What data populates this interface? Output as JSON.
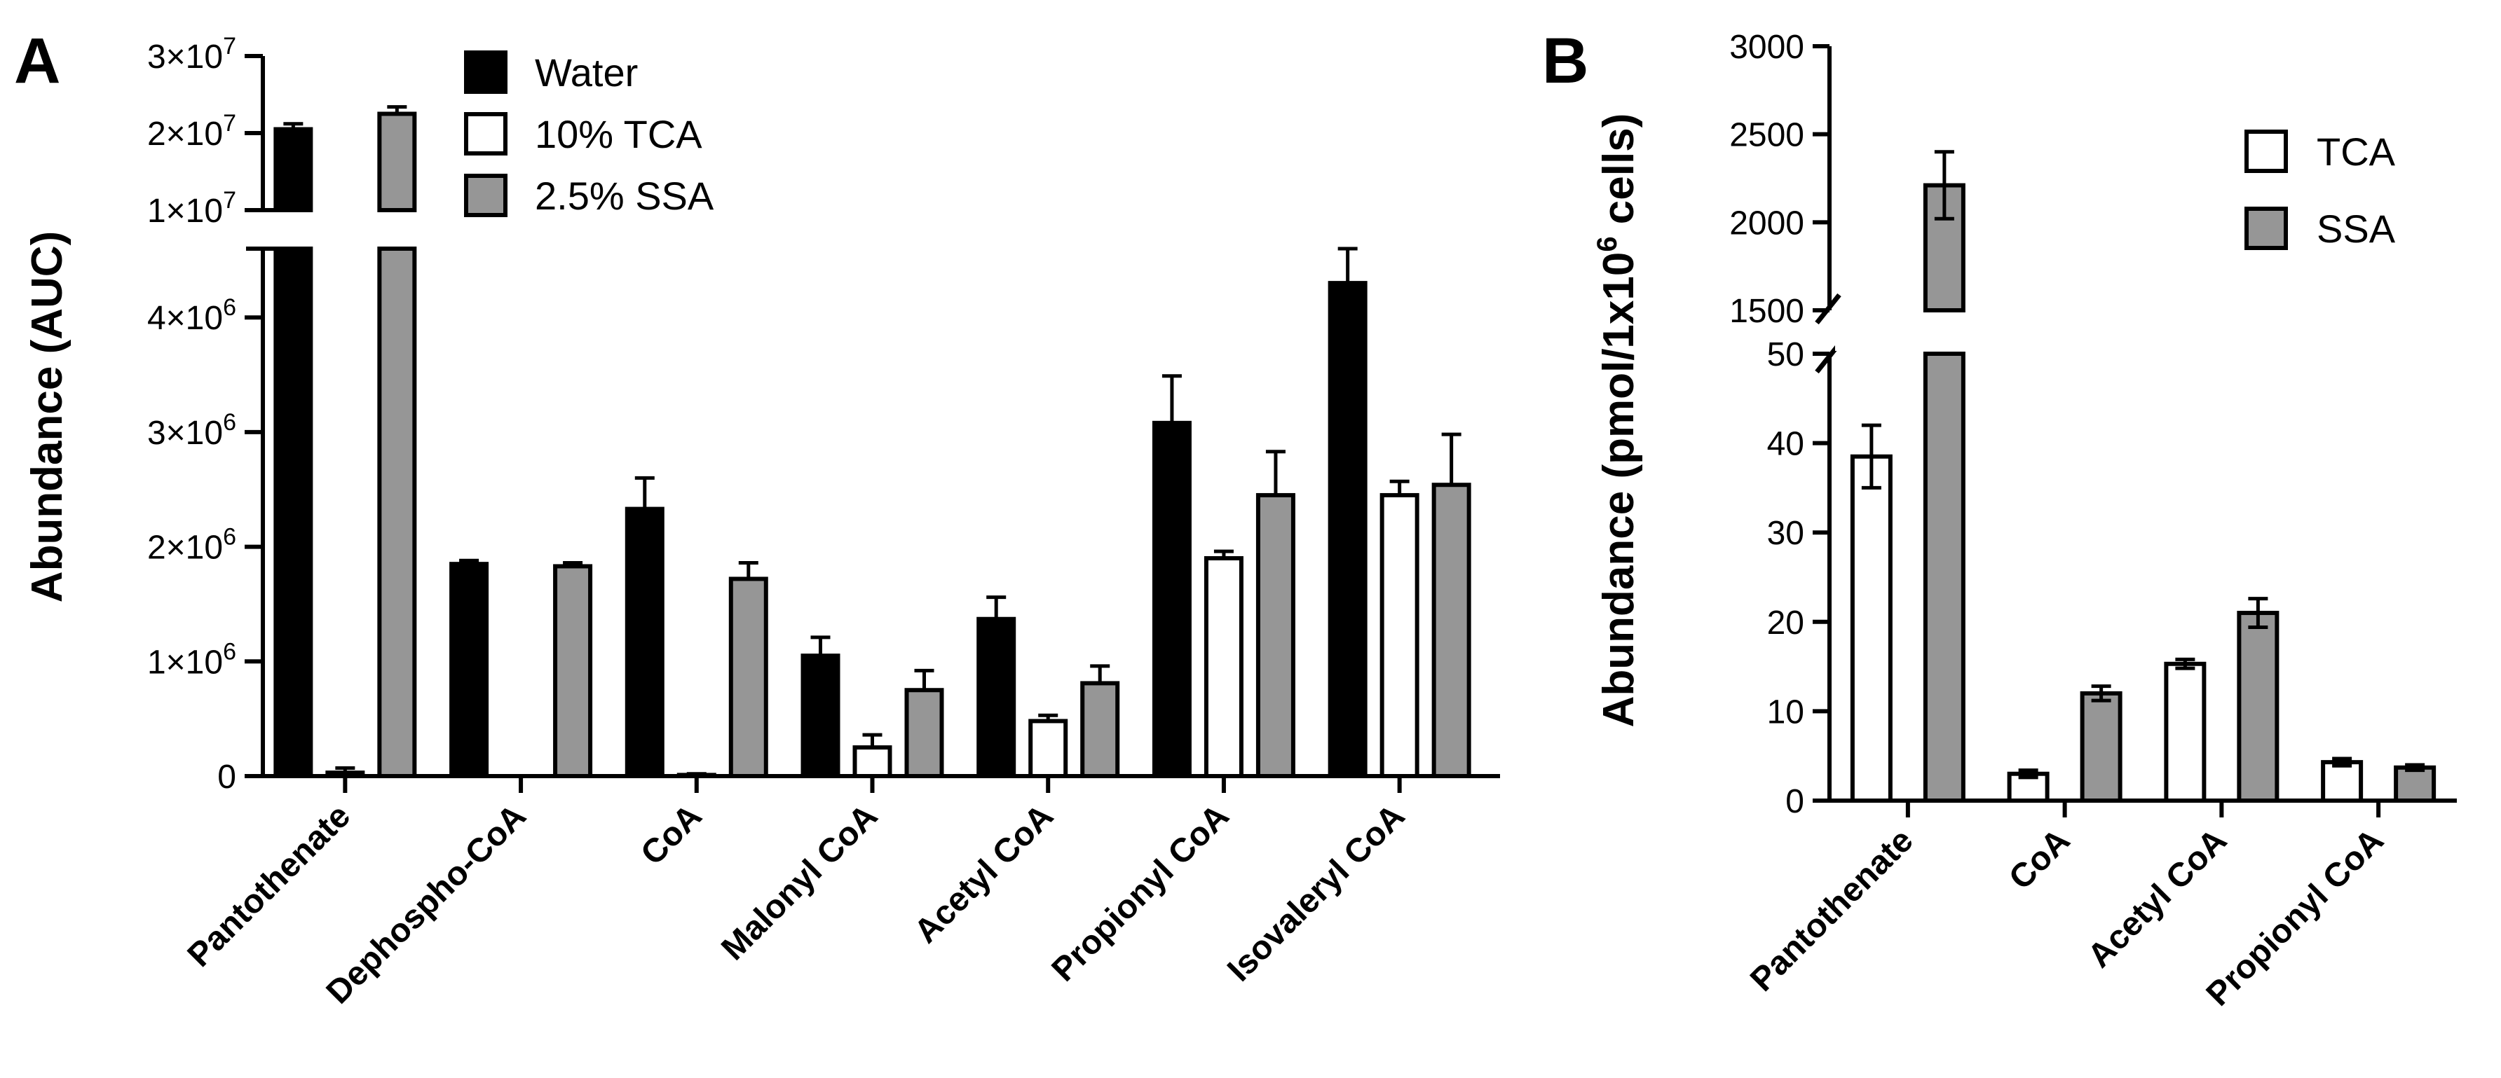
{
  "chart_data": [
    {
      "panel": "A",
      "type": "bar",
      "ylabel": "Abundance (AUC)",
      "categories": [
        "Pantothenate",
        "Dephospho-CoA",
        "CoA",
        "Malonyl CoA",
        "Acetyl CoA",
        "Propionyl CoA",
        "Isovaleryl CoA"
      ],
      "series": [
        {
          "name": "Water",
          "color": "#000000",
          "values": [
            20500000,
            1850000,
            2330000,
            1050000,
            1370000,
            3080000,
            4300000
          ],
          "errors": [
            700000,
            30000,
            270000,
            160000,
            190000,
            410000,
            300000
          ]
        },
        {
          "name": "10% TCA",
          "color": "#ffffff",
          "values": [
            30000,
            0,
            10000,
            250000,
            480000,
            1900000,
            2450000
          ],
          "errors": [
            40000,
            0,
            10000,
            110000,
            50000,
            60000,
            120000
          ]
        },
        {
          "name": "2.5% SSA",
          "color": "#969696",
          "values": [
            22500000,
            1830000,
            1720000,
            750000,
            810000,
            2450000,
            2540000
          ],
          "errors": [
            900000,
            30000,
            140000,
            170000,
            150000,
            380000,
            440000
          ]
        }
      ],
      "axis": {
        "lower": {
          "range": [
            0,
            4600000
          ],
          "ticks": [
            0,
            1000000,
            2000000,
            3000000,
            4000000
          ],
          "tick_labels": [
            "0",
            "1×10",
            "2×10",
            "3×10",
            "4×10"
          ],
          "tick_exponents": [
            "",
            "6",
            "6",
            "6",
            "6"
          ]
        },
        "upper": {
          "range": [
            10000000,
            30000000
          ],
          "ticks": [
            10000000,
            20000000,
            30000000
          ],
          "tick_labels": [
            "1×10",
            "2×10",
            "3×10"
          ],
          "tick_exponents": [
            "7",
            "7",
            "7"
          ]
        }
      },
      "legend_position": "top-center"
    },
    {
      "panel": "B",
      "type": "bar",
      "ylabel": "Abundance (pmol/1x10",
      "ylabel_exponent": "6",
      "ylabel_suffix": " cells)",
      "categories": [
        "Pantothenate",
        "CoA",
        "Acetyl CoA",
        "Propionyl CoA"
      ],
      "series": [
        {
          "name": "TCA",
          "color": "#ffffff",
          "values": [
            38.5,
            3.0,
            15.3,
            4.3
          ],
          "errors": [
            3.5,
            0.4,
            0.5,
            0.4
          ]
        },
        {
          "name": "SSA",
          "color": "#969696",
          "values": [
            2210,
            12.0,
            21.0,
            3.7
          ],
          "errors": [
            190,
            0.8,
            1.6,
            0.3
          ]
        }
      ],
      "axis": {
        "lower": {
          "range": [
            0,
            50
          ],
          "ticks": [
            0,
            10,
            20,
            30,
            40,
            50
          ],
          "tick_labels": [
            "0",
            "10",
            "20",
            "30",
            "40",
            "50"
          ]
        },
        "upper": {
          "range": [
            1500,
            3000
          ],
          "ticks": [
            1500,
            2000,
            2500,
            3000
          ],
          "tick_labels": [
            "1500",
            "2000",
            "2500",
            "3000"
          ]
        }
      },
      "legend_position": "top-right"
    }
  ]
}
